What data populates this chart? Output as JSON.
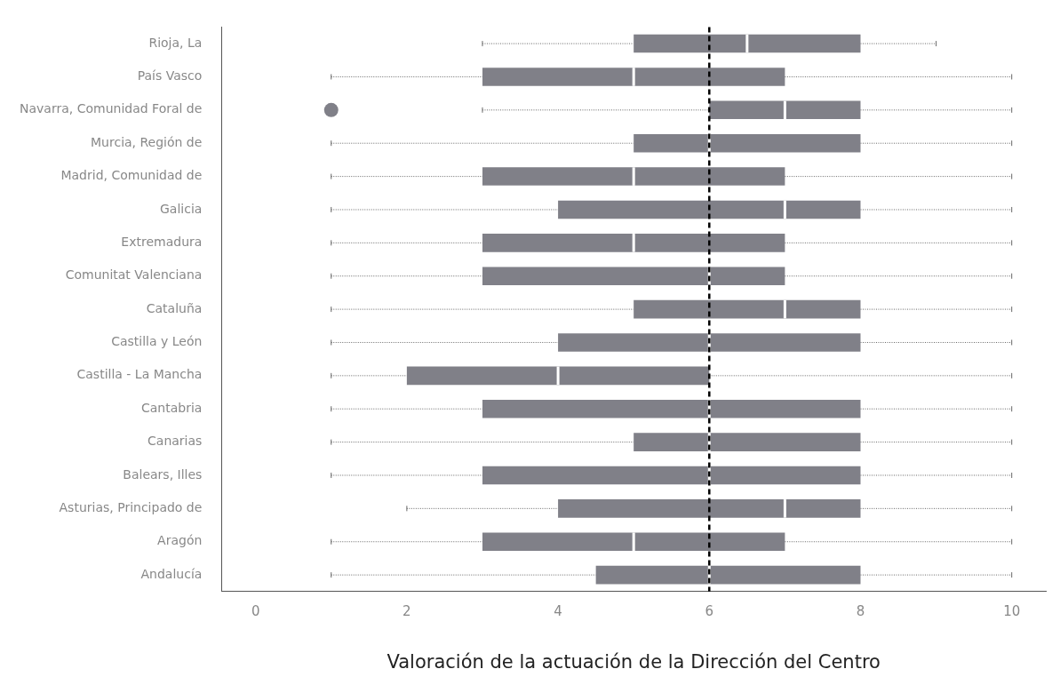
{
  "chart_data": {
    "type": "box",
    "orientation": "horizontal",
    "xlabel": "Valoración de la actuación de la Dirección del Centro",
    "color": "#808088",
    "categories": [
      "Rioja, La",
      "País Vasco",
      "Navarra, Comunidad Foral de",
      "Murcia, Región de",
      "Madrid, Comunidad de",
      "Galicia",
      "Extremadura",
      "Comunitat Valenciana",
      "Cataluña",
      "Castilla y León",
      "Castilla - La Mancha",
      "Cantabria",
      "Canarias",
      "Balears, Illes",
      "Asturias, Principado de",
      "Aragón",
      "Andalucía"
    ],
    "boxes": [
      {
        "low": 3,
        "q1": 5,
        "median": 6.5,
        "q3": 8,
        "high": 9
      },
      {
        "low": 1,
        "q1": 3,
        "median": 5,
        "q3": 7,
        "high": 10
      },
      {
        "low": 3,
        "q1": 6,
        "median": 7,
        "q3": 8,
        "high": 10,
        "outliers": [
          1
        ]
      },
      {
        "low": 1,
        "q1": 5,
        "median": 6,
        "q3": 8,
        "high": 10
      },
      {
        "low": 1,
        "q1": 3,
        "median": 5,
        "q3": 7,
        "high": 10
      },
      {
        "low": 1,
        "q1": 4,
        "median": 7,
        "q3": 8,
        "high": 10
      },
      {
        "low": 1,
        "q1": 3,
        "median": 5,
        "q3": 7,
        "high": 10
      },
      {
        "low": 1,
        "q1": 3,
        "median": 6,
        "q3": 7,
        "high": 10
      },
      {
        "low": 1,
        "q1": 5,
        "median": 7,
        "q3": 8,
        "high": 10
      },
      {
        "low": 1,
        "q1": 4,
        "median": 6,
        "q3": 8,
        "high": 10
      },
      {
        "low": 1,
        "q1": 2,
        "median": 4,
        "q3": 6,
        "high": 10
      },
      {
        "low": 1,
        "q1": 3,
        "median": 6,
        "q3": 8,
        "high": 10
      },
      {
        "low": 1,
        "q1": 5,
        "median": 6,
        "q3": 8,
        "high": 10
      },
      {
        "low": 1,
        "q1": 3,
        "median": 6,
        "q3": 8,
        "high": 10
      },
      {
        "low": 2,
        "q1": 4,
        "median": 7,
        "q3": 8,
        "high": 10
      },
      {
        "low": 1,
        "q1": 3,
        "median": 5,
        "q3": 7,
        "high": 10
      },
      {
        "low": 1,
        "q1": 4.5,
        "median": 6,
        "q3": 8,
        "high": 10
      }
    ],
    "xlim": [
      -0.45,
      10.45
    ],
    "xticks": [
      0,
      2,
      4,
      6,
      8,
      10
    ],
    "grid": false,
    "ref_lines": [
      {
        "axis": "x",
        "value": 6,
        "color": "#000000",
        "line_style": "dashed"
      }
    ]
  }
}
